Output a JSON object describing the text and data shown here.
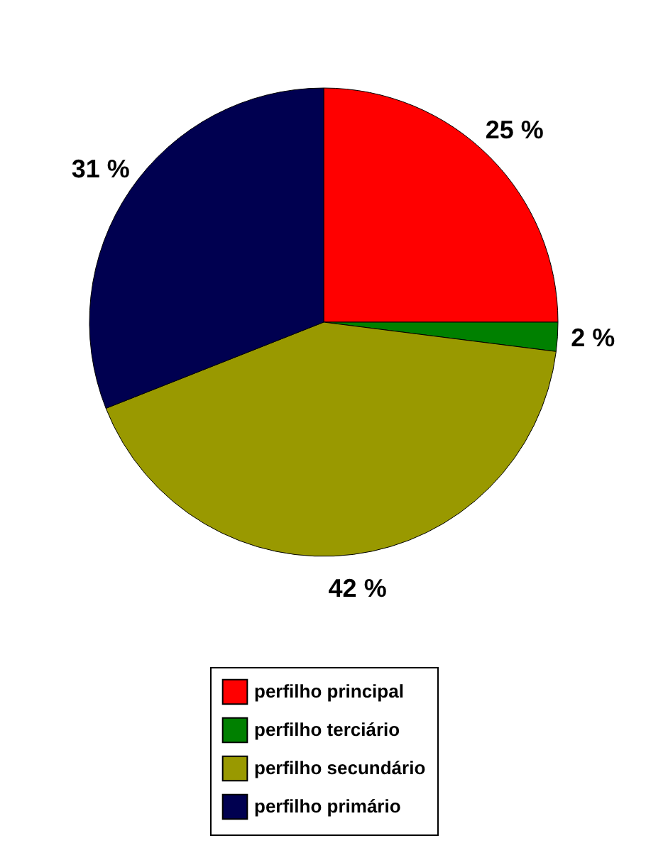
{
  "chart_data": {
    "type": "pie",
    "categories": [
      "perfilho principal",
      "perfilho terciário",
      "perfilho secundário",
      "perfilho primário"
    ],
    "values": [
      25,
      2,
      42,
      31
    ],
    "colors": [
      "#ff0000",
      "#008000",
      "#999900",
      "#000050"
    ],
    "value_labels": [
      "25 %",
      "2 %",
      "42 %",
      "31 %"
    ],
    "legend": "bottom"
  }
}
